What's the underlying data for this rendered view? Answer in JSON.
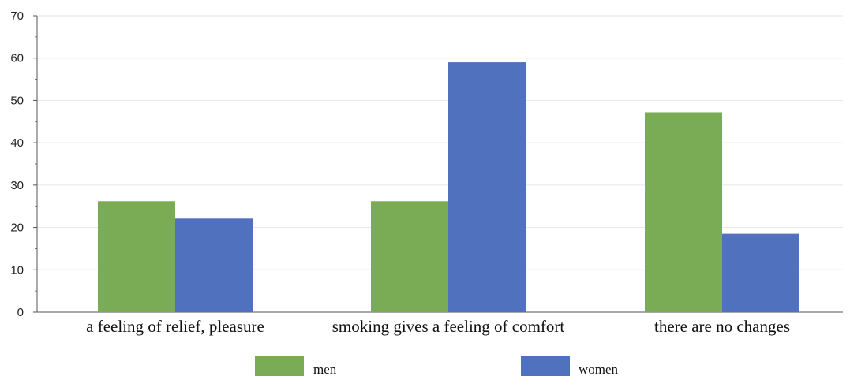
{
  "chart_data": {
    "type": "bar",
    "categories": [
      "a feeling of relief, pleasure",
      "smoking gives a feeling of comfort",
      "there are no changes"
    ],
    "series": [
      {
        "name": "men",
        "values": [
          26.2,
          26.2,
          47.2
        ],
        "color": "#7aab55"
      },
      {
        "name": "women",
        "values": [
          22.1,
          59.0,
          18.5
        ],
        "color": "#4f71be"
      }
    ],
    "ylim": [
      0,
      70
    ],
    "yticks": [
      "0",
      "10",
      "20",
      "30",
      "40",
      "50",
      "60",
      "70"
    ],
    "grid": true,
    "legend_position": "bottom",
    "title": "",
    "xlabel": "",
    "ylabel": ""
  }
}
